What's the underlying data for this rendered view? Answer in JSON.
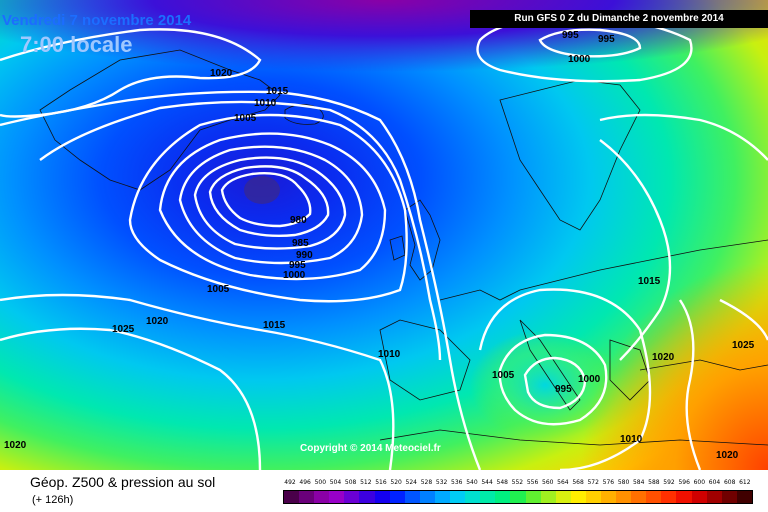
{
  "header": {
    "date": "Vendredi 7 novembre 2014",
    "time": "7:00 locale",
    "run": "Run GFS 0 Z du Dimanche 2 novembre 2014"
  },
  "footer": {
    "variable": "Géop. Z500 & pression au sol",
    "lead": "(+ 126h)",
    "copyright": "Copyright © 2014 Meteociel.fr"
  },
  "legend": {
    "ticks": [
      "492",
      "496",
      "500",
      "504",
      "508",
      "512",
      "516",
      "520",
      "524",
      "528",
      "532",
      "536",
      "540",
      "544",
      "548",
      "552",
      "556",
      "560",
      "564",
      "568",
      "572",
      "576",
      "580",
      "584",
      "588",
      "592",
      "596",
      "600",
      "604",
      "608",
      "612"
    ],
    "colors": [
      "#4a004a",
      "#6a007a",
      "#8a00a6",
      "#9800c8",
      "#6a00d4",
      "#3c00e0",
      "#1400f0",
      "#0022ff",
      "#0055ff",
      "#0080ff",
      "#00aaff",
      "#00ccf5",
      "#00e0d0",
      "#00eaa8",
      "#00f080",
      "#20f050",
      "#60f030",
      "#a0f020",
      "#d8f010",
      "#ffee00",
      "#ffd000",
      "#ffb000",
      "#ff9000",
      "#ff7000",
      "#ff5000",
      "#ff3000",
      "#f01000",
      "#d00000",
      "#a00000",
      "#700000",
      "#400000"
    ]
  },
  "isobars": [
    {
      "value": "1020",
      "id": "a"
    },
    {
      "value": "1015",
      "id": "b"
    },
    {
      "value": "1010",
      "id": "c"
    },
    {
      "value": "1005",
      "id": "d"
    },
    {
      "value": "980",
      "id": "e"
    },
    {
      "value": "985",
      "id": "f"
    },
    {
      "value": "990",
      "id": "g"
    },
    {
      "value": "995",
      "id": "h"
    },
    {
      "value": "1000",
      "id": "i"
    },
    {
      "value": "1005",
      "id": "j"
    },
    {
      "value": "1025",
      "id": "k"
    },
    {
      "value": "1020",
      "id": "l"
    },
    {
      "value": "1015",
      "id": "m"
    },
    {
      "value": "1010",
      "id": "n"
    },
    {
      "value": "1005",
      "id": "o"
    },
    {
      "value": "995",
      "id": "p"
    },
    {
      "value": "1000",
      "id": "q"
    },
    {
      "value": "1015",
      "id": "r"
    },
    {
      "value": "1020",
      "id": "s"
    },
    {
      "value": "1025",
      "id": "t"
    },
    {
      "value": "1010",
      "id": "u"
    },
    {
      "value": "1020",
      "id": "v"
    },
    {
      "value": "1020",
      "id": "w"
    },
    {
      "value": "995",
      "id": "x"
    },
    {
      "value": "995",
      "id": "y"
    },
    {
      "value": "1000",
      "id": "z"
    },
    {
      "value": "1005",
      "id": "aa"
    },
    {
      "value": "1010",
      "id": "ab"
    }
  ]
}
